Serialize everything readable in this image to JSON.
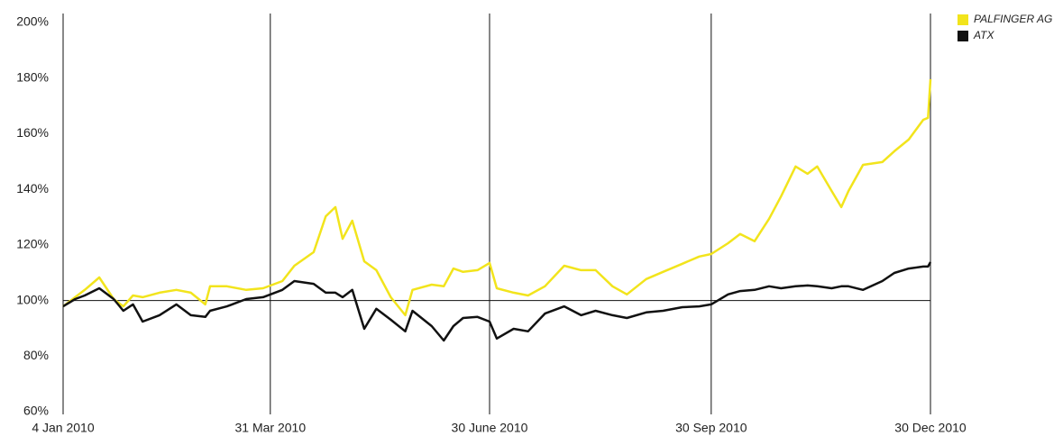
{
  "chart_data": {
    "type": "line",
    "x": [
      "2010-01-04",
      "2010-01-09",
      "2010-01-13",
      "2010-01-19",
      "2010-01-25",
      "2010-01-29",
      "2010-02-02",
      "2010-02-06",
      "2010-02-13",
      "2010-02-20",
      "2010-02-26",
      "2010-03-04",
      "2010-03-06",
      "2010-03-13",
      "2010-03-21",
      "2010-03-28",
      "2010-04-05",
      "2010-04-10",
      "2010-04-18",
      "2010-04-23",
      "2010-04-27",
      "2010-04-30",
      "2010-05-04",
      "2010-05-09",
      "2010-05-14",
      "2010-05-20",
      "2010-05-26",
      "2010-05-29",
      "2010-06-06",
      "2010-06-11",
      "2010-06-15",
      "2010-06-19",
      "2010-06-25",
      "2010-06-30",
      "2010-07-03",
      "2010-07-10",
      "2010-07-16",
      "2010-07-23",
      "2010-07-31",
      "2010-08-07",
      "2010-08-13",
      "2010-08-20",
      "2010-08-26",
      "2010-09-03",
      "2010-09-10",
      "2010-09-18",
      "2010-09-25",
      "2010-09-30",
      "2010-10-07",
      "2010-10-12",
      "2010-10-18",
      "2010-10-24",
      "2010-10-29",
      "2010-11-04",
      "2010-11-09",
      "2010-11-13",
      "2010-11-19",
      "2010-11-23",
      "2010-11-26",
      "2010-12-02",
      "2010-12-10",
      "2010-12-15",
      "2010-12-21",
      "2010-12-27",
      "2010-12-29",
      "2010-12-30"
    ],
    "series": [
      {
        "name": "PALFINGER AG",
        "color": "#f2e41c",
        "values": [
          97.9,
          101.2,
          103.8,
          108.3,
          100.5,
          97.9,
          101.8,
          101.2,
          102.8,
          103.8,
          102.8,
          98.6,
          105.1,
          105.1,
          103.8,
          104.4,
          107,
          112.5,
          117.4,
          130.3,
          133.6,
          122.2,
          128.7,
          114.1,
          110.9,
          101.2,
          94.7,
          103.8,
          105.7,
          105.1,
          111.5,
          110.3,
          110.9,
          113.5,
          104.4,
          102.8,
          101.8,
          105.1,
          112.5,
          110.9,
          110.9,
          105.1,
          102.2,
          107.7,
          110.3,
          113.2,
          115.8,
          116.7,
          120.6,
          123.9,
          121.3,
          129.4,
          137.5,
          148.2,
          145.6,
          148.2,
          139.4,
          133.6,
          139.4,
          148.8,
          149.8,
          153.7,
          157.9,
          165,
          165.7,
          179.6
        ]
      },
      {
        "name": "ATX",
        "color": "#111111",
        "values": [
          97.9,
          100.5,
          101.8,
          104.4,
          100.5,
          96.3,
          98.6,
          92.4,
          94.7,
          98.6,
          94.7,
          94.1,
          96.3,
          97.9,
          100.5,
          101.2,
          103.8,
          107,
          106,
          102.8,
          102.8,
          101.2,
          103.8,
          89.8,
          97,
          93.1,
          88.9,
          96.3,
          90.8,
          85.6,
          90.8,
          93.7,
          94.1,
          92.4,
          86.3,
          89.8,
          88.9,
          95.3,
          97.9,
          94.7,
          96.3,
          94.7,
          93.7,
          95.7,
          96.3,
          97.6,
          97.9,
          98.6,
          102.2,
          103.4,
          103.8,
          105.1,
          104.4,
          105.1,
          105.4,
          105.1,
          104.4,
          105.1,
          105.1,
          103.8,
          107,
          109.9,
          111.5,
          112.2,
          112.2,
          113.8
        ]
      }
    ],
    "xlim": [
      "2010-01-04",
      "2010-12-30"
    ],
    "xticks": [
      {
        "value": "2010-01-04",
        "label": "4 Jan 2010"
      },
      {
        "value": "2010-03-31",
        "label": "31 Mar 2010"
      },
      {
        "value": "2010-06-30",
        "label": "30 June 2010"
      },
      {
        "value": "2010-09-30",
        "label": "30 Sep 2010"
      },
      {
        "value": "2010-12-30",
        "label": "30 Dec 2010"
      }
    ],
    "ylim": [
      60,
      200
    ],
    "yticks": [
      {
        "value": 60,
        "label": "60%"
      },
      {
        "value": 80,
        "label": "80%"
      },
      {
        "value": 100,
        "label": "100%"
      },
      {
        "value": 120,
        "label": "120%"
      },
      {
        "value": 140,
        "label": "140%"
      },
      {
        "value": 160,
        "label": "160%"
      },
      {
        "value": 180,
        "label": "180%"
      },
      {
        "value": 200,
        "label": "200%"
      }
    ],
    "baseline": 100,
    "grid": "x",
    "legend": "top-right"
  }
}
